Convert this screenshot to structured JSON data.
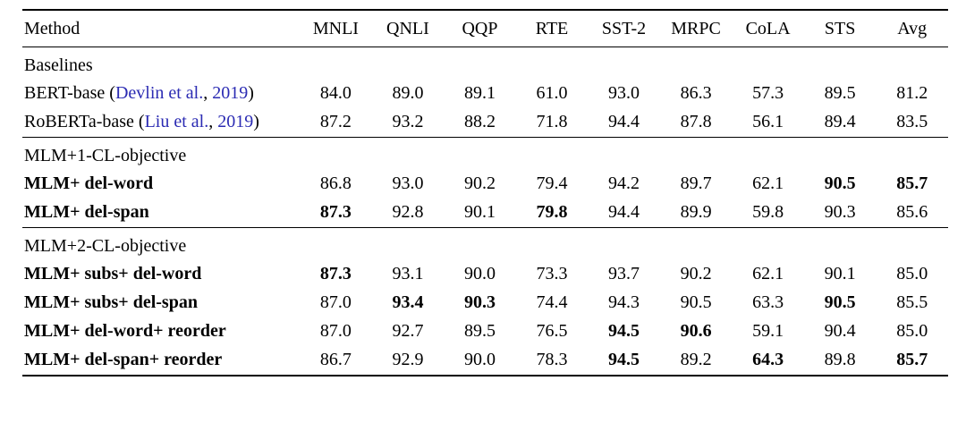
{
  "page": {
    "background_color": "#ffffff",
    "text_color": "#000000",
    "citation_color": "#2b2bb3",
    "rule_color": "#000000"
  },
  "table": {
    "columns": [
      "Method",
      "MNLI",
      "QNLI",
      "QQP",
      "RTE",
      "SST-2",
      "MRPC",
      "CoLA",
      "STS",
      "Avg"
    ],
    "sections": [
      {
        "label": "Baselines",
        "rows": [
          {
            "method_prefix": "BERT-base (",
            "cite_authors": "Devlin et al.",
            "cite_sep": ", ",
            "cite_year": "2019",
            "method_suffix": ")",
            "method_bold": false,
            "values": [
              "84.0",
              "89.0",
              "89.1",
              "61.0",
              "93.0",
              "86.3",
              "57.3",
              "89.5",
              "81.2"
            ],
            "bold": [
              false,
              false,
              false,
              false,
              false,
              false,
              false,
              false,
              false
            ]
          },
          {
            "method_prefix": "RoBERTa-base (",
            "cite_authors": "Liu et al.",
            "cite_sep": ", ",
            "cite_year": "2019",
            "method_suffix": ")",
            "method_bold": false,
            "values": [
              "87.2",
              "93.2",
              "88.2",
              "71.8",
              "94.4",
              "87.8",
              "56.1",
              "89.4",
              "83.5"
            ],
            "bold": [
              false,
              false,
              false,
              false,
              false,
              false,
              false,
              false,
              false
            ]
          }
        ]
      },
      {
        "label": "MLM+1-CL-objective",
        "rows": [
          {
            "method": "MLM+ del-word",
            "method_bold": true,
            "values": [
              "86.8",
              "93.0",
              "90.2",
              "79.4",
              "94.2",
              "89.7",
              "62.1",
              "90.5",
              "85.7"
            ],
            "bold": [
              false,
              false,
              false,
              false,
              false,
              false,
              false,
              true,
              true
            ]
          },
          {
            "method": "MLM+ del-span",
            "method_bold": true,
            "values": [
              "87.3",
              "92.8",
              "90.1",
              "79.8",
              "94.4",
              "89.9",
              "59.8",
              "90.3",
              "85.6"
            ],
            "bold": [
              true,
              false,
              false,
              true,
              false,
              false,
              false,
              false,
              false
            ]
          }
        ]
      },
      {
        "label": "MLM+2-CL-objective",
        "rows": [
          {
            "method": "MLM+ subs+ del-word",
            "method_bold": true,
            "values": [
              "87.3",
              "93.1",
              "90.0",
              "73.3",
              "93.7",
              "90.2",
              "62.1",
              "90.1",
              "85.0"
            ],
            "bold": [
              true,
              false,
              false,
              false,
              false,
              false,
              false,
              false,
              false
            ]
          },
          {
            "method": "MLM+ subs+ del-span",
            "method_bold": true,
            "values": [
              "87.0",
              "93.4",
              "90.3",
              "74.4",
              "94.3",
              "90.5",
              "63.3",
              "90.5",
              "85.5"
            ],
            "bold": [
              false,
              true,
              true,
              false,
              false,
              false,
              false,
              true,
              false
            ]
          },
          {
            "method": "MLM+ del-word+ reorder",
            "method_bold": true,
            "values": [
              "87.0",
              "92.7",
              "89.5",
              "76.5",
              "94.5",
              "90.6",
              "59.1",
              "90.4",
              "85.0"
            ],
            "bold": [
              false,
              false,
              false,
              false,
              true,
              true,
              false,
              false,
              false
            ]
          },
          {
            "method": "MLM+ del-span+ reorder",
            "method_bold": true,
            "values": [
              "86.7",
              "92.9",
              "90.0",
              "78.3",
              "94.5",
              "89.2",
              "64.3",
              "89.8",
              "85.7"
            ],
            "bold": [
              false,
              false,
              false,
              false,
              true,
              false,
              true,
              false,
              true
            ]
          }
        ]
      }
    ]
  }
}
